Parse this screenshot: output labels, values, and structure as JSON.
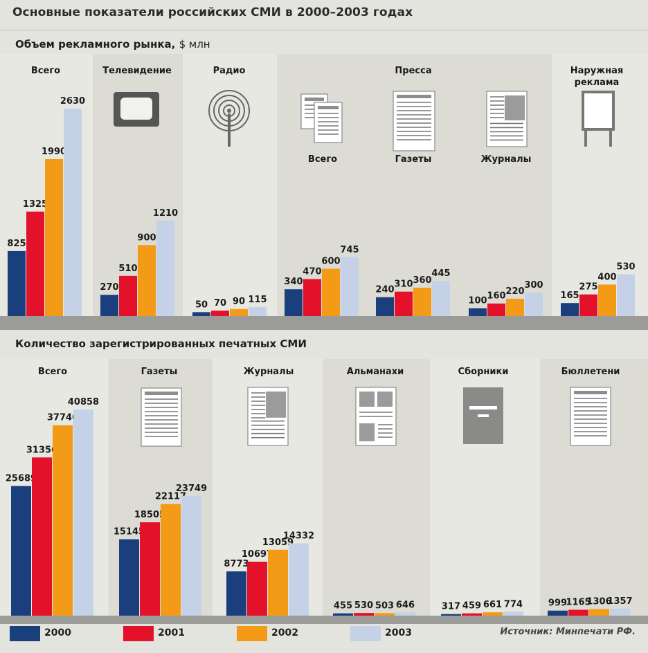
{
  "title": "Основные показатели российских СМИ в 2000–2003 годах",
  "colors": {
    "2000": "#1b3f7c",
    "2001": "#e3122a",
    "2002": "#f39b17",
    "2003": "#c4d1e6"
  },
  "legend": [
    "2000",
    "2001",
    "2002",
    "2003"
  ],
  "source": "Источник: Минпечати РФ.",
  "chart_data": [
    {
      "type": "bar",
      "title": "Объем рекламного рынка,",
      "unit": "$ млн",
      "series_names": [
        "2000",
        "2001",
        "2002",
        "2003"
      ],
      "groups": [
        {
          "label": "Всего",
          "values": [
            825,
            1325,
            1990,
            2630
          ]
        },
        {
          "label": "Телевидение",
          "values": [
            270,
            510,
            900,
            1210
          ]
        },
        {
          "label": "Радио",
          "values": [
            50,
            70,
            90,
            115
          ]
        },
        {
          "label": "Всего",
          "supergroup": "Пресса",
          "values": [
            340,
            470,
            600,
            745
          ]
        },
        {
          "label": "Газеты",
          "supergroup": "Пресса",
          "values": [
            240,
            310,
            360,
            445
          ]
        },
        {
          "label": "Журналы",
          "supergroup": "Пресса",
          "values": [
            100,
            160,
            220,
            300
          ]
        },
        {
          "label": "Наружная реклама",
          "values": [
            165,
            275,
            400,
            530
          ]
        }
      ],
      "supergroup_label": "Пресса"
    },
    {
      "type": "bar",
      "title": "Количество зарегистрированных печатных СМИ",
      "series_names": [
        "2000",
        "2001",
        "2002",
        "2003"
      ],
      "groups": [
        {
          "label": "Всего",
          "values": [
            25689,
            31356,
            37746,
            40858
          ]
        },
        {
          "label": "Газеты",
          "values": [
            15145,
            18505,
            22117,
            23749
          ]
        },
        {
          "label": "Журналы",
          "values": [
            8773,
            10697,
            13059,
            14332
          ]
        },
        {
          "label": "Альманахи",
          "values": [
            455,
            530,
            503,
            646
          ]
        },
        {
          "label": "Сборники",
          "values": [
            317,
            459,
            661,
            774
          ]
        },
        {
          "label": "Бюллетени",
          "values": [
            999,
            1165,
            1306,
            1357
          ]
        }
      ]
    }
  ]
}
